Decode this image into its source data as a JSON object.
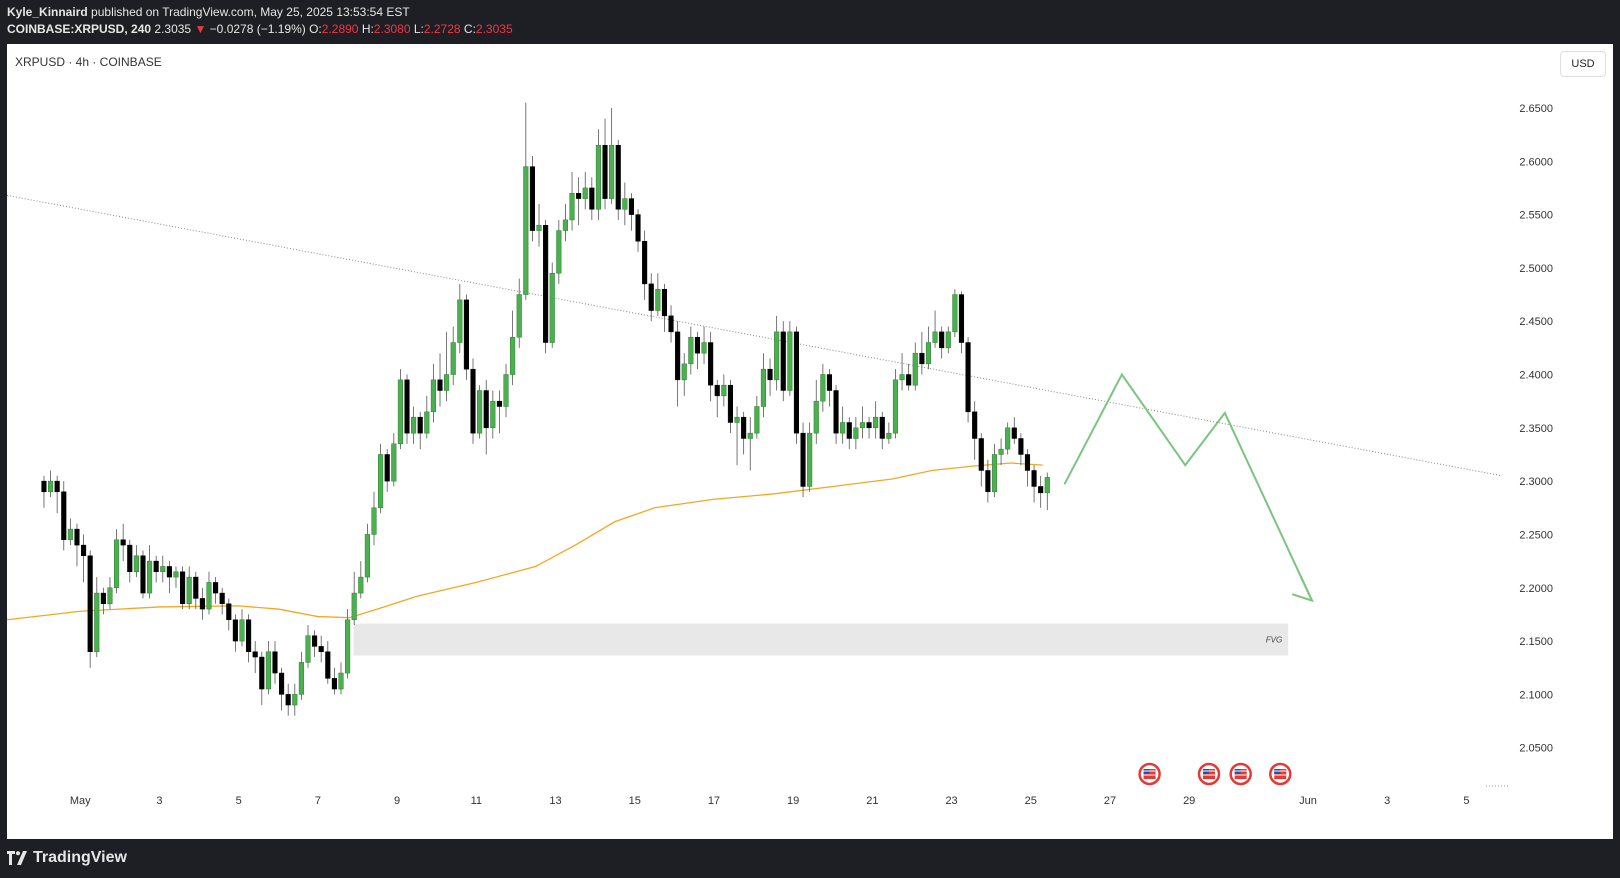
{
  "header": {
    "author": "Kyle_Kinnaird",
    "published_text": "published on TradingView.com, May 25, 2025 13:53:54 EST",
    "symbol_full": "COINBASE:XRPUSD, 240",
    "last_price": "2.3035",
    "change_arrow": "▼",
    "change": "−0.0278 (−1.19%)",
    "o_label": "O:",
    "o_value": "2.2890",
    "h_label": "H:",
    "h_value": "2.3080",
    "l_label": "L:",
    "l_value": "2.2728",
    "c_label": "C:",
    "c_value": "2.3035"
  },
  "legend": {
    "symbol": "XRPUSD · 4h · COINBASE"
  },
  "currency_button": "USD",
  "footer": {
    "brand": "TradingView"
  },
  "colors": {
    "up": "#4caf50",
    "down": "#000000",
    "ma": "#f5a623",
    "projection": "#7cc47f",
    "fvg_fill": "#e8e8e8",
    "trendline": "#888888"
  },
  "chart_data": {
    "type": "candlestick",
    "timeframe": "4h",
    "y_axis": {
      "ticks": [
        "2.6500",
        "2.6000",
        "2.5500",
        "2.5000",
        "2.4500",
        "2.4000",
        "2.3500",
        "2.3000",
        "2.2500",
        "2.2000",
        "2.1500",
        "2.1000",
        "2.0500"
      ],
      "ylim": [
        2.015,
        2.71
      ]
    },
    "x_axis": {
      "ticks": [
        {
          "label": "May",
          "day": 1
        },
        {
          "label": "3",
          "day": 3
        },
        {
          "label": "5",
          "day": 5
        },
        {
          "label": "7",
          "day": 7
        },
        {
          "label": "9",
          "day": 9
        },
        {
          "label": "11",
          "day": 11
        },
        {
          "label": "13",
          "day": 13
        },
        {
          "label": "15",
          "day": 15
        },
        {
          "label": "17",
          "day": 17
        },
        {
          "label": "19",
          "day": 19
        },
        {
          "label": "21",
          "day": 21
        },
        {
          "label": "23",
          "day": 23
        },
        {
          "label": "25",
          "day": 25
        },
        {
          "label": "27",
          "day": 27
        },
        {
          "label": "29",
          "day": 29
        },
        {
          "label": "Jun",
          "day": 32
        },
        {
          "label": "3",
          "day": 34
        },
        {
          "label": "5",
          "day": 36
        }
      ],
      "xlim_days": [
        -0.85,
        37.1
      ]
    },
    "candles": [
      [
        2.3,
        2.29,
        2.305,
        2.275
      ],
      [
        2.29,
        2.3,
        2.31,
        2.285
      ],
      [
        2.3,
        2.29,
        2.305,
        2.27
      ],
      [
        2.29,
        2.245,
        2.3,
        2.235
      ],
      [
        2.245,
        2.255,
        2.265,
        2.24
      ],
      [
        2.255,
        2.24,
        2.26,
        2.22
      ],
      [
        2.24,
        2.23,
        2.25,
        2.205
      ],
      [
        2.23,
        2.14,
        2.235,
        2.125
      ],
      [
        2.14,
        2.195,
        2.21,
        2.135
      ],
      [
        2.195,
        2.185,
        2.2,
        2.175
      ],
      [
        2.185,
        2.2,
        2.21,
        2.18
      ],
      [
        2.2,
        2.245,
        2.255,
        2.195
      ],
      [
        2.245,
        2.24,
        2.26,
        2.225
      ],
      [
        2.24,
        2.215,
        2.245,
        2.205
      ],
      [
        2.215,
        2.23,
        2.24,
        2.21
      ],
      [
        2.23,
        2.195,
        2.235,
        2.19
      ],
      [
        2.195,
        2.225,
        2.24,
        2.19
      ],
      [
        2.225,
        2.215,
        2.23,
        2.205
      ],
      [
        2.215,
        2.22,
        2.23,
        2.205
      ],
      [
        2.22,
        2.21,
        2.225,
        2.195
      ],
      [
        2.21,
        2.215,
        2.22,
        2.2
      ],
      [
        2.215,
        2.185,
        2.22,
        2.18
      ],
      [
        2.185,
        2.21,
        2.22,
        2.18
      ],
      [
        2.21,
        2.19,
        2.215,
        2.18
      ],
      [
        2.19,
        2.18,
        2.2,
        2.17
      ],
      [
        2.18,
        2.205,
        2.215,
        2.175
      ],
      [
        2.205,
        2.195,
        2.21,
        2.185
      ],
      [
        2.195,
        2.185,
        2.2,
        2.175
      ],
      [
        2.185,
        2.17,
        2.19,
        2.16
      ],
      [
        2.17,
        2.15,
        2.175,
        2.14
      ],
      [
        2.15,
        2.17,
        2.18,
        2.145
      ],
      [
        2.17,
        2.14,
        2.175,
        2.13
      ],
      [
        2.14,
        2.135,
        2.15,
        2.12
      ],
      [
        2.135,
        2.105,
        2.14,
        2.09
      ],
      [
        2.105,
        2.14,
        2.15,
        2.1
      ],
      [
        2.14,
        2.12,
        2.15,
        2.11
      ],
      [
        2.12,
        2.1,
        2.125,
        2.085
      ],
      [
        2.1,
        2.09,
        2.11,
        2.08
      ],
      [
        2.09,
        2.1,
        2.11,
        2.08
      ],
      [
        2.1,
        2.13,
        2.14,
        2.095
      ],
      [
        2.13,
        2.155,
        2.165,
        2.125
      ],
      [
        2.155,
        2.145,
        2.16,
        2.135
      ],
      [
        2.145,
        2.14,
        2.155,
        2.13
      ],
      [
        2.14,
        2.115,
        2.15,
        2.11
      ],
      [
        2.115,
        2.105,
        2.125,
        2.1
      ],
      [
        2.105,
        2.12,
        2.13,
        2.1
      ],
      [
        2.12,
        2.17,
        2.18,
        2.115
      ],
      [
        2.17,
        2.195,
        2.215,
        2.165
      ],
      [
        2.195,
        2.21,
        2.225,
        2.19
      ],
      [
        2.21,
        2.25,
        2.26,
        2.205
      ],
      [
        2.25,
        2.275,
        2.29,
        2.24
      ],
      [
        2.275,
        2.325,
        2.335,
        2.27
      ],
      [
        2.325,
        2.3,
        2.33,
        2.29
      ],
      [
        2.3,
        2.335,
        2.345,
        2.295
      ],
      [
        2.335,
        2.395,
        2.405,
        2.33
      ],
      [
        2.395,
        2.345,
        2.4,
        2.335
      ],
      [
        2.345,
        2.36,
        2.37,
        2.335
      ],
      [
        2.36,
        2.345,
        2.365,
        2.33
      ],
      [
        2.345,
        2.365,
        2.38,
        2.34
      ],
      [
        2.365,
        2.395,
        2.41,
        2.355
      ],
      [
        2.395,
        2.385,
        2.42,
        2.37
      ],
      [
        2.385,
        2.4,
        2.44,
        2.375
      ],
      [
        2.4,
        2.43,
        2.445,
        2.39
      ],
      [
        2.43,
        2.47,
        2.485,
        2.42
      ],
      [
        2.47,
        2.405,
        2.475,
        2.395
      ],
      [
        2.405,
        2.345,
        2.415,
        2.335
      ],
      [
        2.345,
        2.385,
        2.39,
        2.34
      ],
      [
        2.385,
        2.35,
        2.395,
        2.325
      ],
      [
        2.35,
        2.375,
        2.385,
        2.34
      ],
      [
        2.375,
        2.37,
        2.385,
        2.345
      ],
      [
        2.37,
        2.4,
        2.41,
        2.36
      ],
      [
        2.4,
        2.435,
        2.46,
        2.39
      ],
      [
        2.435,
        2.475,
        2.49,
        2.425
      ],
      [
        2.475,
        2.595,
        2.655,
        2.47
      ],
      [
        2.595,
        2.535,
        2.605,
        2.525
      ],
      [
        2.535,
        2.54,
        2.56,
        2.52
      ],
      [
        2.54,
        2.43,
        2.545,
        2.42
      ],
      [
        2.43,
        2.495,
        2.505,
        2.425
      ],
      [
        2.495,
        2.535,
        2.545,
        2.485
      ],
      [
        2.535,
        2.545,
        2.56,
        2.525
      ],
      [
        2.545,
        2.57,
        2.59,
        2.535
      ],
      [
        2.57,
        2.565,
        2.585,
        2.54
      ],
      [
        2.565,
        2.575,
        2.59,
        2.555
      ],
      [
        2.575,
        2.555,
        2.585,
        2.545
      ],
      [
        2.555,
        2.615,
        2.63,
        2.545
      ],
      [
        2.615,
        2.565,
        2.64,
        2.555
      ],
      [
        2.565,
        2.615,
        2.65,
        2.56
      ],
      [
        2.615,
        2.555,
        2.62,
        2.545
      ],
      [
        2.555,
        2.565,
        2.58,
        2.54
      ],
      [
        2.565,
        2.55,
        2.57,
        2.535
      ],
      [
        2.55,
        2.525,
        2.555,
        2.515
      ],
      [
        2.525,
        2.485,
        2.535,
        2.47
      ],
      [
        2.485,
        2.46,
        2.495,
        2.45
      ],
      [
        2.46,
        2.48,
        2.495,
        2.455
      ],
      [
        2.48,
        2.455,
        2.485,
        2.44
      ],
      [
        2.455,
        2.44,
        2.465,
        2.43
      ],
      [
        2.44,
        2.395,
        2.45,
        2.37
      ],
      [
        2.395,
        2.41,
        2.42,
        2.38
      ],
      [
        2.41,
        2.435,
        2.445,
        2.4
      ],
      [
        2.435,
        2.42,
        2.44,
        2.405
      ],
      [
        2.42,
        2.43,
        2.445,
        2.41
      ],
      [
        2.43,
        2.39,
        2.44,
        2.375
      ],
      [
        2.39,
        2.38,
        2.395,
        2.36
      ],
      [
        2.38,
        2.39,
        2.4,
        2.37
      ],
      [
        2.39,
        2.355,
        2.395,
        2.345
      ],
      [
        2.355,
        2.36,
        2.37,
        2.315
      ],
      [
        2.36,
        2.34,
        2.365,
        2.325
      ],
      [
        2.34,
        2.345,
        2.36,
        2.31
      ],
      [
        2.345,
        2.37,
        2.38,
        2.34
      ],
      [
        2.37,
        2.405,
        2.42,
        2.36
      ],
      [
        2.405,
        2.395,
        2.415,
        2.38
      ],
      [
        2.395,
        2.44,
        2.455,
        2.385
      ],
      [
        2.44,
        2.385,
        2.45,
        2.375
      ],
      [
        2.385,
        2.44,
        2.45,
        2.38
      ],
      [
        2.44,
        2.345,
        2.445,
        2.335
      ],
      [
        2.345,
        2.295,
        2.355,
        2.285
      ],
      [
        2.295,
        2.345,
        2.355,
        2.29
      ],
      [
        2.345,
        2.375,
        2.395,
        2.335
      ],
      [
        2.375,
        2.4,
        2.41,
        2.365
      ],
      [
        2.4,
        2.385,
        2.405,
        2.37
      ],
      [
        2.385,
        2.345,
        2.39,
        2.335
      ],
      [
        2.345,
        2.355,
        2.37,
        2.335
      ],
      [
        2.355,
        2.34,
        2.36,
        2.33
      ],
      [
        2.34,
        2.35,
        2.36,
        2.33
      ],
      [
        2.35,
        2.355,
        2.37,
        2.34
      ],
      [
        2.355,
        2.35,
        2.36,
        2.34
      ],
      [
        2.35,
        2.36,
        2.375,
        2.34
      ],
      [
        2.36,
        2.34,
        2.365,
        2.33
      ],
      [
        2.34,
        2.345,
        2.355,
        2.335
      ],
      [
        2.345,
        2.395,
        2.405,
        2.34
      ],
      [
        2.395,
        2.4,
        2.42,
        2.385
      ],
      [
        2.4,
        2.39,
        2.41,
        2.385
      ],
      [
        2.39,
        2.42,
        2.43,
        2.385
      ],
      [
        2.42,
        2.41,
        2.44,
        2.4
      ],
      [
        2.41,
        2.43,
        2.445,
        2.405
      ],
      [
        2.43,
        2.44,
        2.46,
        2.425
      ],
      [
        2.44,
        2.425,
        2.445,
        2.415
      ],
      [
        2.425,
        2.44,
        2.445,
        2.42
      ],
      [
        2.44,
        2.475,
        2.48,
        2.435
      ],
      [
        2.475,
        2.43,
        2.478,
        2.42
      ],
      [
        2.43,
        2.365,
        2.435,
        2.355
      ],
      [
        2.365,
        2.34,
        2.375,
        2.32
      ],
      [
        2.34,
        2.31,
        2.345,
        2.295
      ],
      [
        2.31,
        2.29,
        2.32,
        2.28
      ],
      [
        2.29,
        2.325,
        2.335,
        2.285
      ],
      [
        2.325,
        2.33,
        2.34,
        2.315
      ],
      [
        2.33,
        2.35,
        2.355,
        2.325
      ],
      [
        2.35,
        2.34,
        2.36,
        2.335
      ],
      [
        2.34,
        2.325,
        2.345,
        2.315
      ],
      [
        2.325,
        2.31,
        2.33,
        2.295
      ],
      [
        2.31,
        2.295,
        2.315,
        2.28
      ],
      [
        2.295,
        2.289,
        2.305,
        2.275
      ],
      [
        2.289,
        2.3035,
        2.308,
        2.2728
      ]
    ],
    "moving_average": [
      [
        -0.85,
        2.17
      ],
      [
        1,
        2.178
      ],
      [
        3,
        2.182
      ],
      [
        5,
        2.183
      ],
      [
        6,
        2.18
      ],
      [
        7,
        2.173
      ],
      [
        7.8,
        2.172
      ],
      [
        8.5,
        2.18
      ],
      [
        9.5,
        2.192
      ],
      [
        11,
        2.205
      ],
      [
        12.5,
        2.22
      ],
      [
        13.5,
        2.24
      ],
      [
        14.5,
        2.262
      ],
      [
        15.5,
        2.275
      ],
      [
        17,
        2.283
      ],
      [
        18.5,
        2.288
      ],
      [
        20,
        2.295
      ],
      [
        21.5,
        2.302
      ],
      [
        22.5,
        2.31
      ],
      [
        23.5,
        2.314
      ],
      [
        24.5,
        2.317
      ],
      [
        25.3,
        2.315
      ]
    ],
    "trendline": [
      [
        -0.85,
        2.568
      ],
      [
        36.9,
        2.305
      ]
    ],
    "fvg_zone": {
      "label": "FVG",
      "price_high": 2.1665,
      "price_low": 2.1365,
      "day_start": 7.9,
      "day_end": 31.5
    },
    "projection_path": [
      [
        25.85,
        2.297
      ],
      [
        27.3,
        2.4
      ],
      [
        28.9,
        2.315
      ],
      [
        29.9,
        2.364
      ],
      [
        32.1,
        2.188
      ]
    ],
    "projection_arrowhead": [
      [
        31.8,
        2.212
      ],
      [
        32.1,
        2.188
      ],
      [
        31.6,
        2.194
      ]
    ],
    "event_markers": [
      {
        "day": 28.0
      },
      {
        "day": 29.5
      },
      {
        "day": 30.3
      },
      {
        "day": 31.3
      }
    ]
  }
}
